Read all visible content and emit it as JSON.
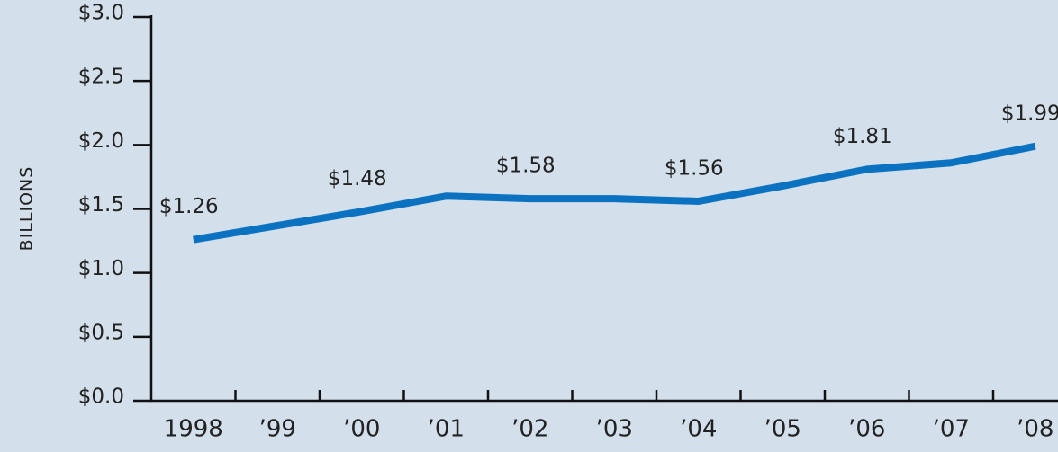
{
  "chart_data": {
    "type": "line",
    "y_label": "BILLIONS",
    "categories": [
      "1998",
      "’99",
      "’00",
      "’01",
      "’02",
      "’03",
      "’04",
      "’05",
      "’06",
      "’07",
      "’08"
    ],
    "values": [
      1.26,
      1.37,
      1.48,
      1.6,
      1.58,
      1.58,
      1.56,
      1.68,
      1.81,
      1.86,
      1.99
    ],
    "value_labels": [
      "$1.26",
      null,
      "$1.48",
      null,
      "$1.58",
      null,
      "$1.56",
      null,
      "$1.81",
      null,
      "$1.99"
    ],
    "color": "#0a72c1",
    "ylim": [
      0,
      3
    ],
    "yticks": [
      {
        "value": 0,
        "label": "$0.0"
      },
      {
        "value": 0.5,
        "label": "$0.5"
      },
      {
        "value": 1,
        "label": "$1.0"
      },
      {
        "value": 1.5,
        "label": "$1.5"
      },
      {
        "value": 2,
        "label": "$2.0"
      },
      {
        "value": 2.5,
        "label": "$2.5"
      },
      {
        "value": 3,
        "label": "$3.0"
      }
    ]
  }
}
